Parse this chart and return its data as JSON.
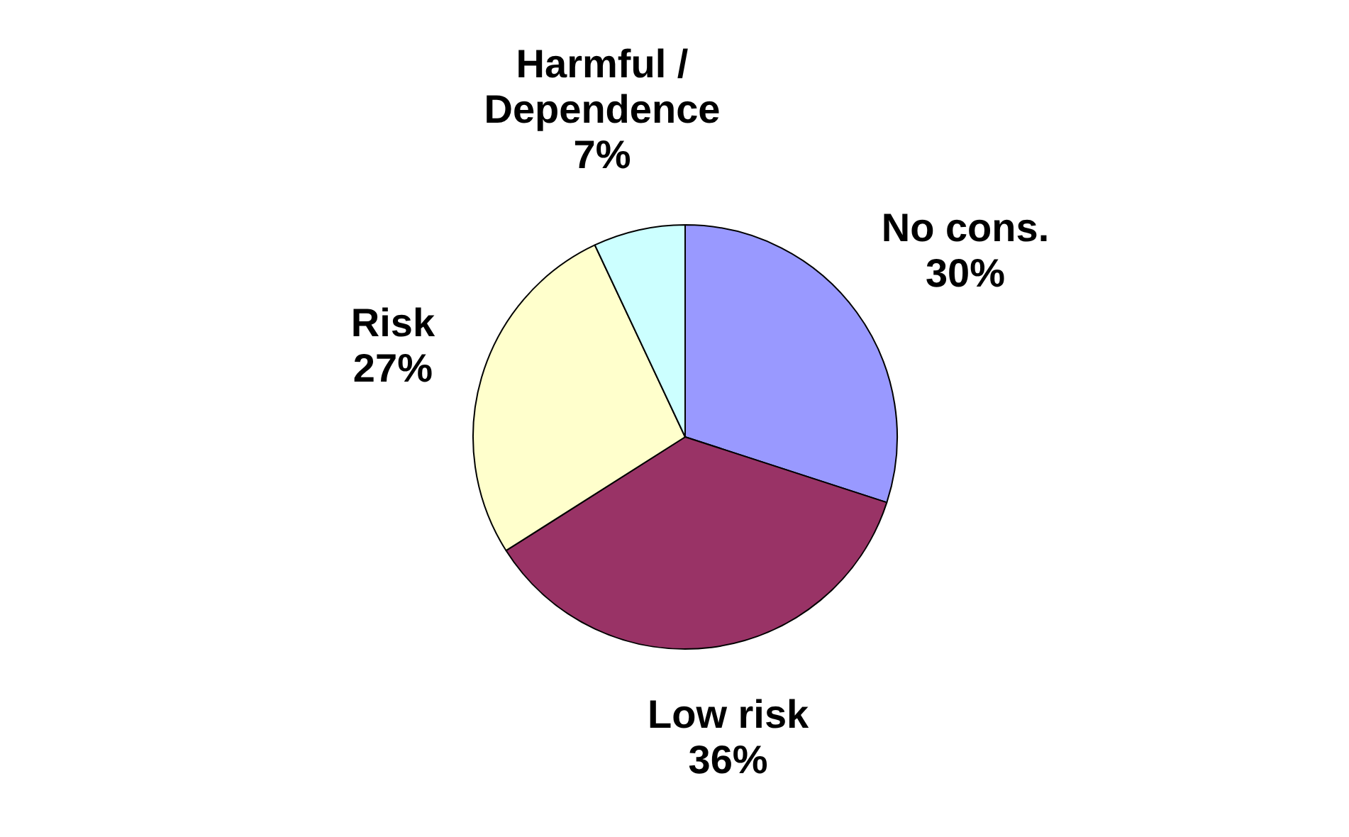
{
  "chart_data": {
    "type": "pie",
    "categories": [
      "No cons.",
      "Low risk",
      "Risk",
      "Harmful / Dependence"
    ],
    "values": [
      30,
      36,
      27,
      7
    ],
    "colors": [
      "#9999ff",
      "#993366",
      "#ffffcc",
      "#ccffff"
    ],
    "value_labels": [
      "30%",
      "36%",
      "27%",
      "7%"
    ],
    "legend": false
  }
}
